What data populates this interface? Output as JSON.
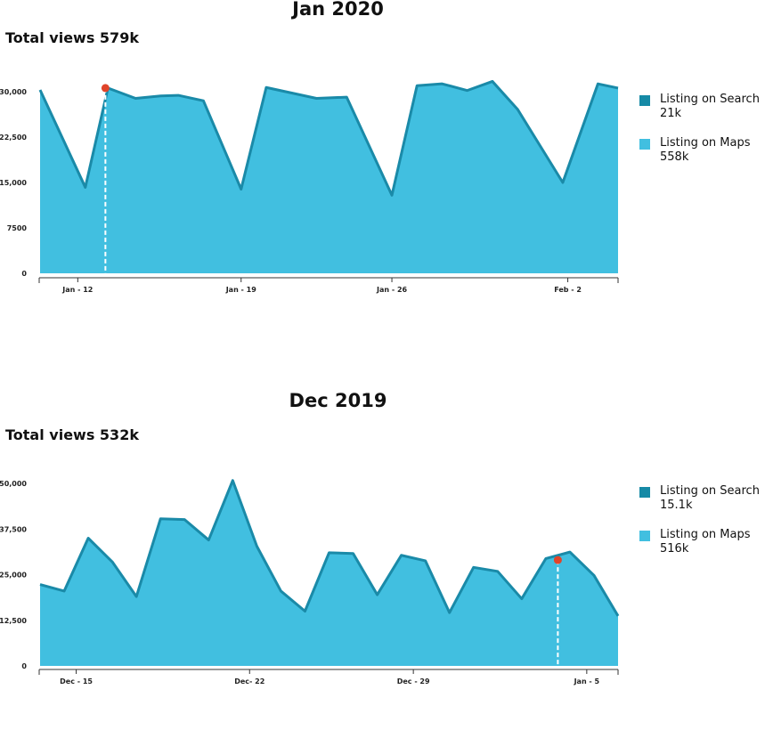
{
  "chart_data": [
    {
      "type": "area",
      "title": "Jan 2020",
      "total_label": "Total views 579k",
      "xlabel": "",
      "ylabel": "",
      "ylim": [
        0,
        30000
      ],
      "yticks": [
        "0",
        "7500",
        "15,000",
        "22,500",
        "30,000"
      ],
      "ytick_values": [
        0,
        7500,
        15000,
        22500,
        30000
      ],
      "xticks": [
        "Jan - 12",
        "Jan - 19",
        "Jan - 26",
        "Feb - 2"
      ],
      "xtick_index": [
        1.5,
        8,
        14,
        21
      ],
      "grid": false,
      "legend_position": "right",
      "marker_index": 2.6,
      "marker_value": 30600,
      "series": [
        {
          "name": "Listing on Maps",
          "color": "#41bfe0",
          "line_color": "#1a8aa8",
          "values": [
            30300,
            14200,
            30600,
            28900,
            29300,
            29400,
            28500,
            13900,
            30700,
            28900,
            29100,
            12900,
            31000,
            31300,
            30200,
            31700,
            27100,
            15000,
            31300,
            30600
          ]
        }
      ],
      "x_index": [
        0,
        1.8,
        2.7,
        3.8,
        4.8,
        5.5,
        6.5,
        8,
        9,
        11,
        12.2,
        14,
        15,
        16,
        17,
        18,
        19,
        20.8,
        22.2,
        23
      ]
    },
    {
      "type": "area",
      "title": "Dec 2019",
      "total_label": "Total views 532k",
      "xlabel": "",
      "ylabel": "",
      "ylim": [
        0,
        50000
      ],
      "yticks": [
        "0",
        "12,500",
        "25,000",
        "37,500",
        "50,000"
      ],
      "ytick_values": [
        0,
        12500,
        25000,
        37500,
        50000
      ],
      "xticks": [
        "Dec - 15",
        "Dec- 22",
        "Dec - 29",
        "Jan - 5"
      ],
      "xtick_index": [
        1.5,
        8.7,
        15.5,
        22.7
      ],
      "grid": false,
      "legend_position": "right",
      "marker_index": 21.5,
      "marker_value": 29000,
      "series": [
        {
          "name": "Listing on Maps",
          "color": "#41bfe0",
          "line_color": "#1a8aa8",
          "values": [
            22300,
            20500,
            35000,
            28500,
            19000,
            40300,
            40100,
            34500,
            50800,
            32800,
            20500,
            15000,
            31000,
            30800,
            19500,
            30300,
            28800,
            14600,
            27000,
            25900,
            18400,
            29400,
            31200,
            24800,
            13700
          ]
        }
      ],
      "x_index": [
        0,
        1,
        2,
        3,
        4,
        5,
        6,
        7,
        8,
        9,
        10,
        11,
        12,
        13,
        14,
        15,
        16,
        17,
        18,
        19,
        20,
        21,
        22,
        23,
        24
      ]
    }
  ],
  "legends": [
    [
      {
        "label": "Listing on Search",
        "value": "21k",
        "color": "#168aa6"
      },
      {
        "label": "Listing on Maps",
        "value": "558k",
        "color": "#41bfe0"
      }
    ],
    [
      {
        "label": "Listing on Search",
        "value": "15.1k",
        "color": "#168aa6"
      },
      {
        "label": "Listing on Maps",
        "value": "516k",
        "color": "#41bfe0"
      }
    ]
  ],
  "colors": {
    "marker": "#e0442a",
    "axis": "#333333"
  }
}
